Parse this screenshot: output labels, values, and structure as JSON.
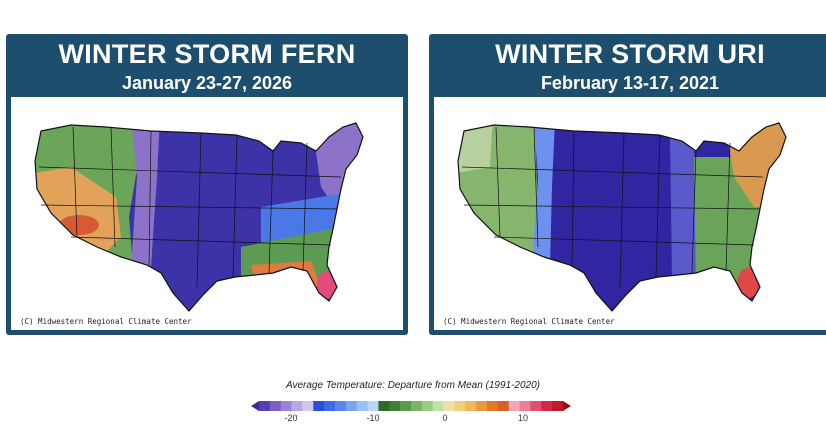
{
  "panels": [
    {
      "title": "WINTER STORM FERN",
      "dates": "January 23-27, 2026",
      "credit": "(C) Midwestern Regional Climate Center",
      "colors": {
        "west": "#6aa55a",
        "southwest": "#e2a25a",
        "hot": "#d65a33",
        "core": "#3c33a8",
        "fringe": "#8c72c8",
        "blue": "#4a78e6",
        "southeast": "#5d9a52",
        "gulf": "#e07a3e",
        "florida": "#e44a7c"
      }
    },
    {
      "title": "WINTER STORM URI",
      "dates": "February 13-17, 2021",
      "credit": "(C) Midwestern Regional Climate Center",
      "colors": {
        "west": "#86b56e",
        "northwest": "#b8cfa0",
        "core": "#3126a2",
        "fringe": "#5a5acc",
        "blue": "#6e90ee",
        "southeast": "#6aa35a",
        "northeast": "#d99a50",
        "florida": "#e04848"
      }
    }
  ],
  "legend": {
    "title": "Average Temperature: Departure from Mean (1991-2020)",
    "ticks": [
      "-20",
      "-10",
      "0",
      "10"
    ],
    "colors": [
      "#3a2a9c",
      "#5a3fb0",
      "#7a5ec4",
      "#9c82d4",
      "#b9a8e0",
      "#d2c6ec",
      "#2a4fd8",
      "#3f6ae6",
      "#5a86ee",
      "#7aa3f2",
      "#9cbef6",
      "#bcd6fa",
      "#2f6a2a",
      "#3f7f35",
      "#5a9a4a",
      "#7ab465",
      "#9ccb85",
      "#c2e0a8",
      "#f0e0a8",
      "#f0cf7a",
      "#eeb85a",
      "#e89a3f",
      "#e07a2a",
      "#d8602a",
      "#f2a8b8",
      "#ec7e96",
      "#e2506e",
      "#d42848",
      "#c01a26",
      "#8e1018"
    ]
  }
}
